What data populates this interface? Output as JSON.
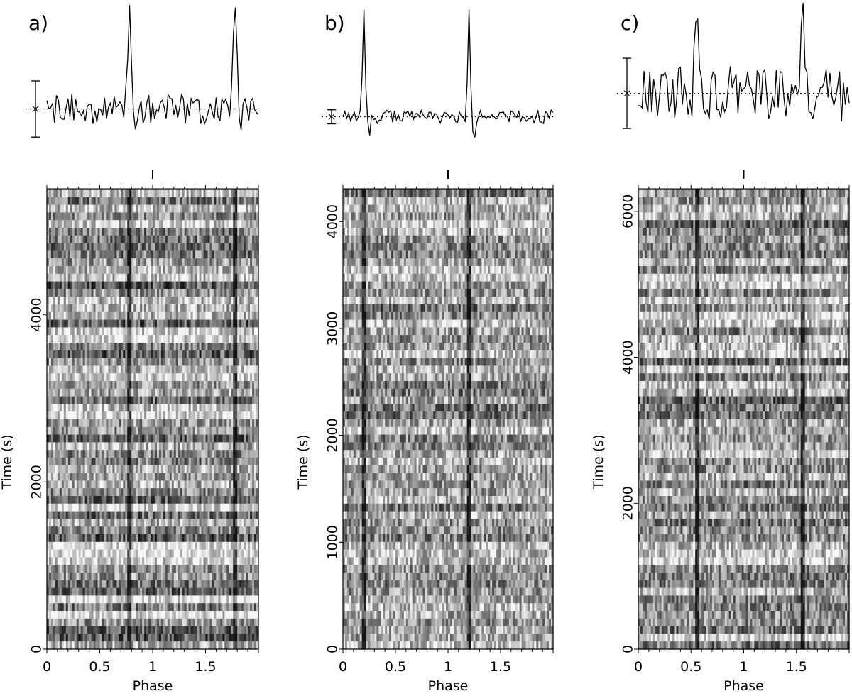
{
  "figure": {
    "panels": 3
  },
  "chart_data": [
    {
      "type": "heatmap",
      "panel_label": "a)",
      "xlabel": "Phase",
      "ylabel": "Time (s)",
      "xlim": [
        0,
        2
      ],
      "ylim": [
        0,
        5500
      ],
      "x_ticks": [
        "0",
        "0.5",
        "1",
        "1.5"
      ],
      "y_ticks": [
        "0",
        "2000",
        "4000"
      ],
      "y_tick_values": [
        0,
        2000,
        4000
      ],
      "pulse_phases": [
        0.78,
        1.78
      ],
      "pulse_profile": {
        "peak_height": 1.0,
        "noise_level": 0.16,
        "error_bar": 0.2,
        "band_contrast": 0.55
      },
      "grayscale": "low counts dark, high counts light"
    },
    {
      "type": "heatmap",
      "panel_label": "b)",
      "xlabel": "Phase",
      "ylabel": "Time (s)",
      "xlim": [
        0,
        2
      ],
      "ylim": [
        0,
        4300
      ],
      "x_ticks": [
        "0",
        "0.5",
        "1",
        "1.5"
      ],
      "y_ticks": [
        "0",
        "1000",
        "2000",
        "3000",
        "4000"
      ],
      "y_tick_values": [
        0,
        1000,
        2000,
        3000,
        4000
      ],
      "pulse_phases": [
        0.2,
        1.2
      ],
      "pulse_profile": {
        "peak_height": 1.0,
        "noise_level": 0.06,
        "error_bar": 0.05,
        "band_contrast": 0.35
      },
      "grayscale": "low counts dark, high counts light"
    },
    {
      "type": "heatmap",
      "panel_label": "c)",
      "xlabel": "Phase",
      "ylabel": "Time (s)",
      "xlim": [
        0,
        2
      ],
      "ylim": [
        0,
        6300
      ],
      "x_ticks": [
        "0",
        "0.5",
        "1",
        "1.5"
      ],
      "y_ticks": [
        "0",
        "2000",
        "4000",
        "6000"
      ],
      "y_tick_values": [
        0,
        2000,
        4000,
        6000
      ],
      "pulse_phases": [
        0.56,
        1.56
      ],
      "pulse_profile": {
        "peak_height": 1.0,
        "noise_level": 0.3,
        "error_bar": 0.25,
        "band_contrast": 0.5
      },
      "grayscale": "low counts dark, high counts light"
    }
  ]
}
